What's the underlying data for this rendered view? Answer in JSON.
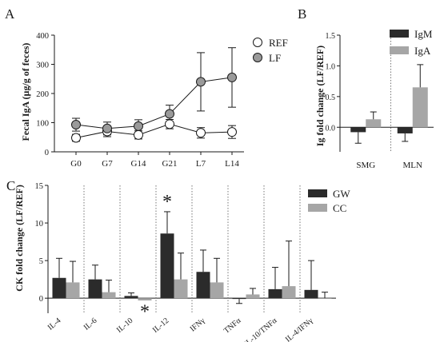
{
  "panels": {
    "a": "A",
    "b": "B",
    "c": "C"
  },
  "colors": {
    "dark": "#2b2b2b",
    "light": "#a6a6a6",
    "lf_marker": "#9a9a9a",
    "ref_marker": "#ffffff"
  },
  "chart_data": [
    {
      "type": "line",
      "panel": "A",
      "ylabel": "Fecal IgA (µg/g of feces)",
      "xlabel": "",
      "ylim": [
        0,
        400
      ],
      "yticks": [
        "0",
        "100",
        "200",
        "300",
        "400"
      ],
      "categories": [
        "G0",
        "G7",
        "G14",
        "G21",
        "L7",
        "L14"
      ],
      "legend": [
        "REF",
        "LF"
      ],
      "legend_position": "top-right",
      "series": [
        {
          "name": "REF",
          "values": [
            48,
            70,
            58,
            95,
            65,
            68
          ],
          "errors": [
            12,
            18,
            14,
            16,
            18,
            22
          ]
        },
        {
          "name": "LF",
          "values": [
            93,
            80,
            88,
            130,
            240,
            255
          ],
          "errors": [
            22,
            22,
            22,
            30,
            100,
            102
          ]
        }
      ]
    },
    {
      "type": "bar",
      "panel": "B",
      "ylabel": "Ig fold change (LF/REF)",
      "ylim": [
        -0.4,
        1.5
      ],
      "yticks": [
        "-0.5",
        "0.0",
        "0.5",
        "1.0",
        "1.5"
      ],
      "categories": [
        "SMG",
        "MLN"
      ],
      "legend": [
        "IgM",
        "IgA"
      ],
      "legend_position": "top-right",
      "series": [
        {
          "name": "IgM",
          "values": [
            -0.08,
            -0.1
          ],
          "errors": [
            0.18,
            0.13
          ]
        },
        {
          "name": "IgA",
          "values": [
            0.13,
            0.65
          ],
          "errors": [
            0.12,
            0.37
          ]
        }
      ]
    },
    {
      "type": "bar",
      "panel": "C",
      "ylabel": "CK fold change (LF/REF)",
      "ylim": [
        -2,
        15
      ],
      "yticks": [
        "0",
        "5",
        "10",
        "15"
      ],
      "categories": [
        "IL-4",
        "IL-6",
        "IL-10",
        "IL-12",
        "IFNγ",
        "TNFα",
        "IL-10/TNFα",
        "IL-4/IFNγ"
      ],
      "legend": [
        "GW",
        "CC"
      ],
      "legend_position": "top-right",
      "annotations": [
        "*",
        "*"
      ],
      "series": [
        {
          "name": "GW",
          "values": [
            2.7,
            2.5,
            0.3,
            8.6,
            3.5,
            -0.1,
            1.2,
            1.1
          ],
          "errors": [
            2.6,
            1.9,
            0.4,
            2.9,
            2.9,
            0.6,
            2.9,
            3.9
          ]
        },
        {
          "name": "CC",
          "values": [
            2.1,
            0.8,
            -0.3,
            2.5,
            2.1,
            0.5,
            1.6,
            0.0
          ],
          "errors": [
            2.8,
            1.6,
            0.0,
            3.5,
            3.2,
            0.8,
            6.0,
            0.8
          ]
        }
      ]
    }
  ]
}
